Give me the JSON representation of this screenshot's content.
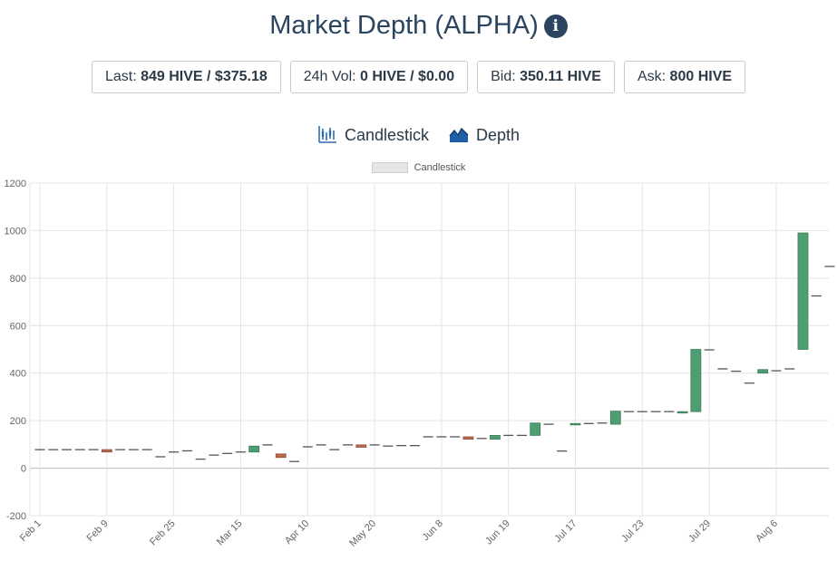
{
  "header": {
    "title": "Market Depth (ALPHA)",
    "info_icon": "info-icon"
  },
  "stats": [
    {
      "label": "Last:",
      "value": "849 HIVE / $375.18"
    },
    {
      "label": "24h Vol:",
      "value": "0 HIVE / $0.00"
    },
    {
      "label": "Bid:",
      "value": "350.11 HIVE"
    },
    {
      "label": "Ask:",
      "value": "800 HIVE"
    }
  ],
  "tabs": [
    {
      "label": "Candlestick",
      "icon": "candlestick-icon"
    },
    {
      "label": "Depth",
      "icon": "depth-icon"
    }
  ],
  "colors": {
    "up": "#4e9e72",
    "down": "#b86a4e",
    "flat": "#555555",
    "accent": "#2b4560"
  },
  "chart_data": {
    "type": "candlestick",
    "legend": [
      "Candlestick"
    ],
    "legend_position": "top",
    "grid": true,
    "ylim": [
      -200,
      1200
    ],
    "yticks": [
      -200,
      0,
      200,
      400,
      600,
      800,
      1000,
      1200
    ],
    "xticks": [
      "Feb 1",
      "Feb 9",
      "Feb 25",
      "Mar 15",
      "Apr 10",
      "May 20",
      "Jun 8",
      "Jun 19",
      "Jul 17",
      "Jul 23",
      "Jul 29",
      "Aug 6"
    ],
    "xtick_positions": [
      0,
      5,
      10,
      15,
      20,
      25,
      30,
      35,
      40,
      45,
      50,
      55
    ],
    "candles": [
      {
        "o": 78,
        "c": 78
      },
      {
        "o": 78,
        "c": 78
      },
      {
        "o": 78,
        "c": 78
      },
      {
        "o": 78,
        "c": 78
      },
      {
        "o": 78,
        "c": 78
      },
      {
        "o": 78,
        "c": 68
      },
      {
        "o": 78,
        "c": 78
      },
      {
        "o": 78,
        "c": 78
      },
      {
        "o": 78,
        "c": 78
      },
      {
        "o": 48,
        "c": 48
      },
      {
        "o": 68,
        "c": 68
      },
      {
        "o": 73,
        "c": 73
      },
      {
        "o": 38,
        "c": 38
      },
      {
        "o": 55,
        "c": 55
      },
      {
        "o": 62,
        "c": 62
      },
      {
        "o": 68,
        "c": 68
      },
      {
        "o": 68,
        "c": 93
      },
      {
        "o": 98,
        "c": 98
      },
      {
        "o": 60,
        "c": 45
      },
      {
        "o": 28,
        "c": 28
      },
      {
        "o": 85,
        "c": 90
      },
      {
        "o": 98,
        "c": 98
      },
      {
        "o": 78,
        "c": 78
      },
      {
        "o": 98,
        "c": 98
      },
      {
        "o": 98,
        "c": 88
      },
      {
        "o": 98,
        "c": 98
      },
      {
        "o": 93,
        "c": 93
      },
      {
        "o": 95,
        "c": 95
      },
      {
        "o": 95,
        "c": 95
      },
      {
        "o": 132,
        "c": 132
      },
      {
        "o": 132,
        "c": 132
      },
      {
        "o": 132,
        "c": 132
      },
      {
        "o": 132,
        "c": 122
      },
      {
        "o": 125,
        "c": 125
      },
      {
        "o": 122,
        "c": 138
      },
      {
        "o": 138,
        "c": 138
      },
      {
        "o": 138,
        "c": 138
      },
      {
        "o": 138,
        "c": 190
      },
      {
        "o": 185,
        "c": 185
      },
      {
        "o": 72,
        "c": 72
      },
      {
        "o": 182,
        "c": 188
      },
      {
        "o": 188,
        "c": 188
      },
      {
        "o": 190,
        "c": 190
      },
      {
        "o": 185,
        "c": 240
      },
      {
        "o": 238,
        "c": 238
      },
      {
        "o": 238,
        "c": 238
      },
      {
        "o": 238,
        "c": 238
      },
      {
        "o": 238,
        "c": 238
      },
      {
        "o": 232,
        "c": 238
      },
      {
        "o": 238,
        "c": 500
      },
      {
        "o": 498,
        "c": 498
      },
      {
        "o": 418,
        "c": 418
      },
      {
        "o": 408,
        "c": 408
      },
      {
        "o": 358,
        "c": 358
      },
      {
        "o": 400,
        "c": 415
      },
      {
        "o": 410,
        "c": 410
      },
      {
        "o": 418,
        "c": 418
      },
      {
        "o": 500,
        "c": 990
      },
      {
        "o": 725,
        "c": 725
      },
      {
        "o": 849,
        "c": 849
      }
    ]
  }
}
